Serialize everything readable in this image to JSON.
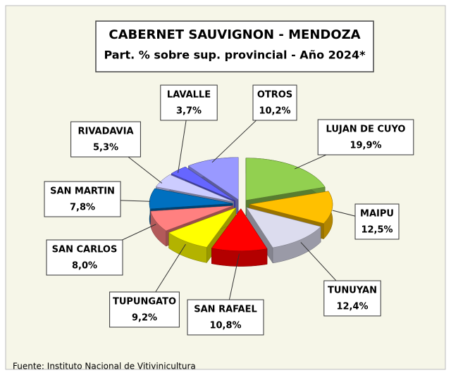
{
  "chart_data": {
    "type": "pie",
    "title": "CABERNET SAUVIGNON - MENDOZA",
    "subtitle": "Part. % sobre sup. provincial - Año 2024*",
    "source": "Fuente: Instituto Nacional de Vitivinicultura",
    "categories": [
      "LUJAN DE CUYO",
      "MAIPU",
      "TUNUYAN",
      "SAN RAFAEL",
      "TUPUNGATO",
      "SAN CARLOS",
      "SAN MARTIN",
      "RIVADAVIA",
      "LAVALLE",
      "OTROS"
    ],
    "values": [
      19.9,
      12.5,
      12.4,
      10.8,
      9.2,
      8.0,
      7.8,
      5.3,
      3.7,
      10.2
    ],
    "value_labels": [
      "19,9%",
      "12,5%",
      "12,4%",
      "10,8%",
      "9,2%",
      "8,0%",
      "7,8%",
      "5,3%",
      "3,7%",
      "10,2%"
    ],
    "colors": [
      "#92d050",
      "#ffc000",
      "#dcdcee",
      "#ff0000",
      "#ffff00",
      "#ff8080",
      "#0070c0",
      "#ccccff",
      "#6666ff",
      "#9999ff"
    ]
  }
}
